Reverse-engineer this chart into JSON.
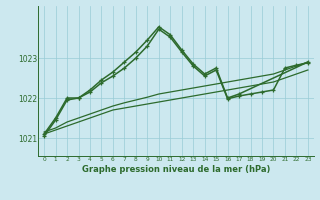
{
  "title": "Graphe pression niveau de la mer (hPa)",
  "bg_color": "#cce8ef",
  "grid_color": "#99ccd6",
  "line_color": "#2d6b2d",
  "xlim": [
    -0.5,
    23.5
  ],
  "ylim": [
    1020.55,
    1024.3
  ],
  "yticks": [
    1021,
    1022,
    1023
  ],
  "xticks": [
    0,
    1,
    2,
    3,
    4,
    5,
    6,
    7,
    8,
    9,
    10,
    11,
    12,
    13,
    14,
    15,
    16,
    17,
    18,
    19,
    20,
    21,
    22,
    23
  ],
  "series": [
    {
      "x": [
        0,
        1,
        2,
        3,
        4,
        5,
        6,
        7,
        8,
        9,
        10,
        11,
        12,
        13,
        14,
        15,
        16,
        17,
        18,
        19,
        20,
        21,
        22,
        23
      ],
      "y": [
        1021.1,
        1021.2,
        1021.3,
        1021.4,
        1021.5,
        1021.6,
        1021.7,
        1021.75,
        1021.8,
        1021.85,
        1021.9,
        1021.95,
        1022.0,
        1022.05,
        1022.1,
        1022.15,
        1022.2,
        1022.25,
        1022.3,
        1022.35,
        1022.4,
        1022.5,
        1022.6,
        1022.7
      ],
      "marker": false,
      "linewidth": 0.9
    },
    {
      "x": [
        0,
        1,
        2,
        3,
        4,
        5,
        6,
        7,
        8,
        9,
        10,
        11,
        12,
        13,
        14,
        15,
        16,
        17,
        18,
        19,
        20,
        21,
        22,
        23
      ],
      "y": [
        1021.15,
        1021.25,
        1021.4,
        1021.5,
        1021.6,
        1021.7,
        1021.8,
        1021.88,
        1021.95,
        1022.02,
        1022.1,
        1022.15,
        1022.2,
        1022.25,
        1022.3,
        1022.35,
        1022.4,
        1022.45,
        1022.5,
        1022.55,
        1022.6,
        1022.7,
        1022.8,
        1022.9
      ],
      "marker": false,
      "linewidth": 0.9
    },
    {
      "x": [
        0,
        1,
        2,
        3,
        4,
        5,
        6,
        7,
        8,
        9,
        10,
        11,
        12,
        13,
        14,
        15,
        16,
        17,
        23
      ],
      "y": [
        1021.1,
        1021.5,
        1022.0,
        1022.0,
        1022.2,
        1022.45,
        1022.65,
        1022.9,
        1023.15,
        1023.45,
        1023.78,
        1023.58,
        1023.2,
        1022.85,
        1022.6,
        1022.75,
        1022.0,
        1022.1,
        1022.9
      ],
      "marker": true,
      "linewidth": 1.1
    },
    {
      "x": [
        0,
        1,
        2,
        3,
        4,
        5,
        6,
        7,
        8,
        9,
        10,
        11,
        12,
        13,
        14,
        15,
        16,
        17,
        18,
        19,
        20,
        21,
        22,
        23
      ],
      "y": [
        1021.05,
        1021.45,
        1021.95,
        1022.0,
        1022.15,
        1022.38,
        1022.55,
        1022.75,
        1023.0,
        1023.3,
        1023.72,
        1023.52,
        1023.15,
        1022.8,
        1022.55,
        1022.7,
        1021.98,
        1022.05,
        1022.1,
        1022.15,
        1022.2,
        1022.75,
        1022.82,
        1022.88
      ],
      "marker": true,
      "linewidth": 1.1
    }
  ]
}
